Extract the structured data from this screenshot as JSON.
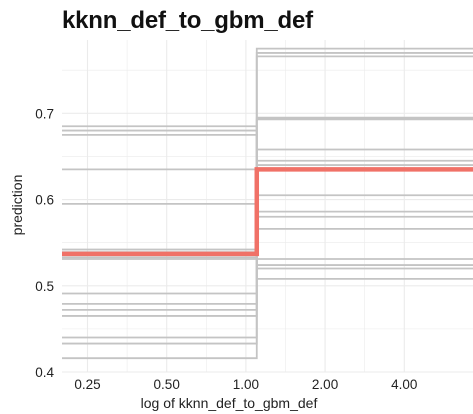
{
  "chart_data": {
    "type": "line",
    "title": "kknn_def_to_gbm_def",
    "xlabel": "log of kknn_def_to_gbm_def",
    "ylabel": "prediction",
    "x_scale": "log",
    "x_ticks": [
      0.25,
      0.5,
      1.0,
      2.0,
      4.0
    ],
    "x_tick_labels": [
      "0.25",
      "0.50",
      "1.00",
      "2.00",
      "4.00"
    ],
    "y_ticks": [
      0.4,
      0.5,
      0.6,
      0.7
    ],
    "y_tick_labels": [
      "0.4",
      "0.5",
      "0.6",
      "0.7"
    ],
    "xlim": [
      0.2,
      7.3
    ],
    "ylim": [
      0.4,
      0.785
    ],
    "step_at": 1.1,
    "x_start": 0.2,
    "x_end": 7.3,
    "grid": true,
    "ice_curves": [
      {
        "before": 0.416,
        "after": 0.775
      },
      {
        "before": 0.433,
        "after": 0.77
      },
      {
        "before": 0.44,
        "after": 0.766
      },
      {
        "before": 0.465,
        "after": 0.695
      },
      {
        "before": 0.472,
        "after": 0.693
      },
      {
        "before": 0.479,
        "after": 0.658
      },
      {
        "before": 0.491,
        "after": 0.645
      },
      {
        "before": 0.531,
        "after": 0.64
      },
      {
        "before": 0.533,
        "after": 0.605
      },
      {
        "before": 0.539,
        "after": 0.586
      },
      {
        "before": 0.542,
        "after": 0.58
      },
      {
        "before": 0.595,
        "after": 0.566
      },
      {
        "before": 0.635,
        "after": 0.531
      },
      {
        "before": 0.675,
        "after": 0.524
      },
      {
        "before": 0.68,
        "after": 0.52
      },
      {
        "before": 0.685,
        "after": 0.508
      }
    ],
    "average_curve": {
      "before": 0.537,
      "after": 0.635
    },
    "colors": {
      "ice": "#c4c4c4",
      "average": "#f07167",
      "grid": "#ebebeb"
    }
  }
}
